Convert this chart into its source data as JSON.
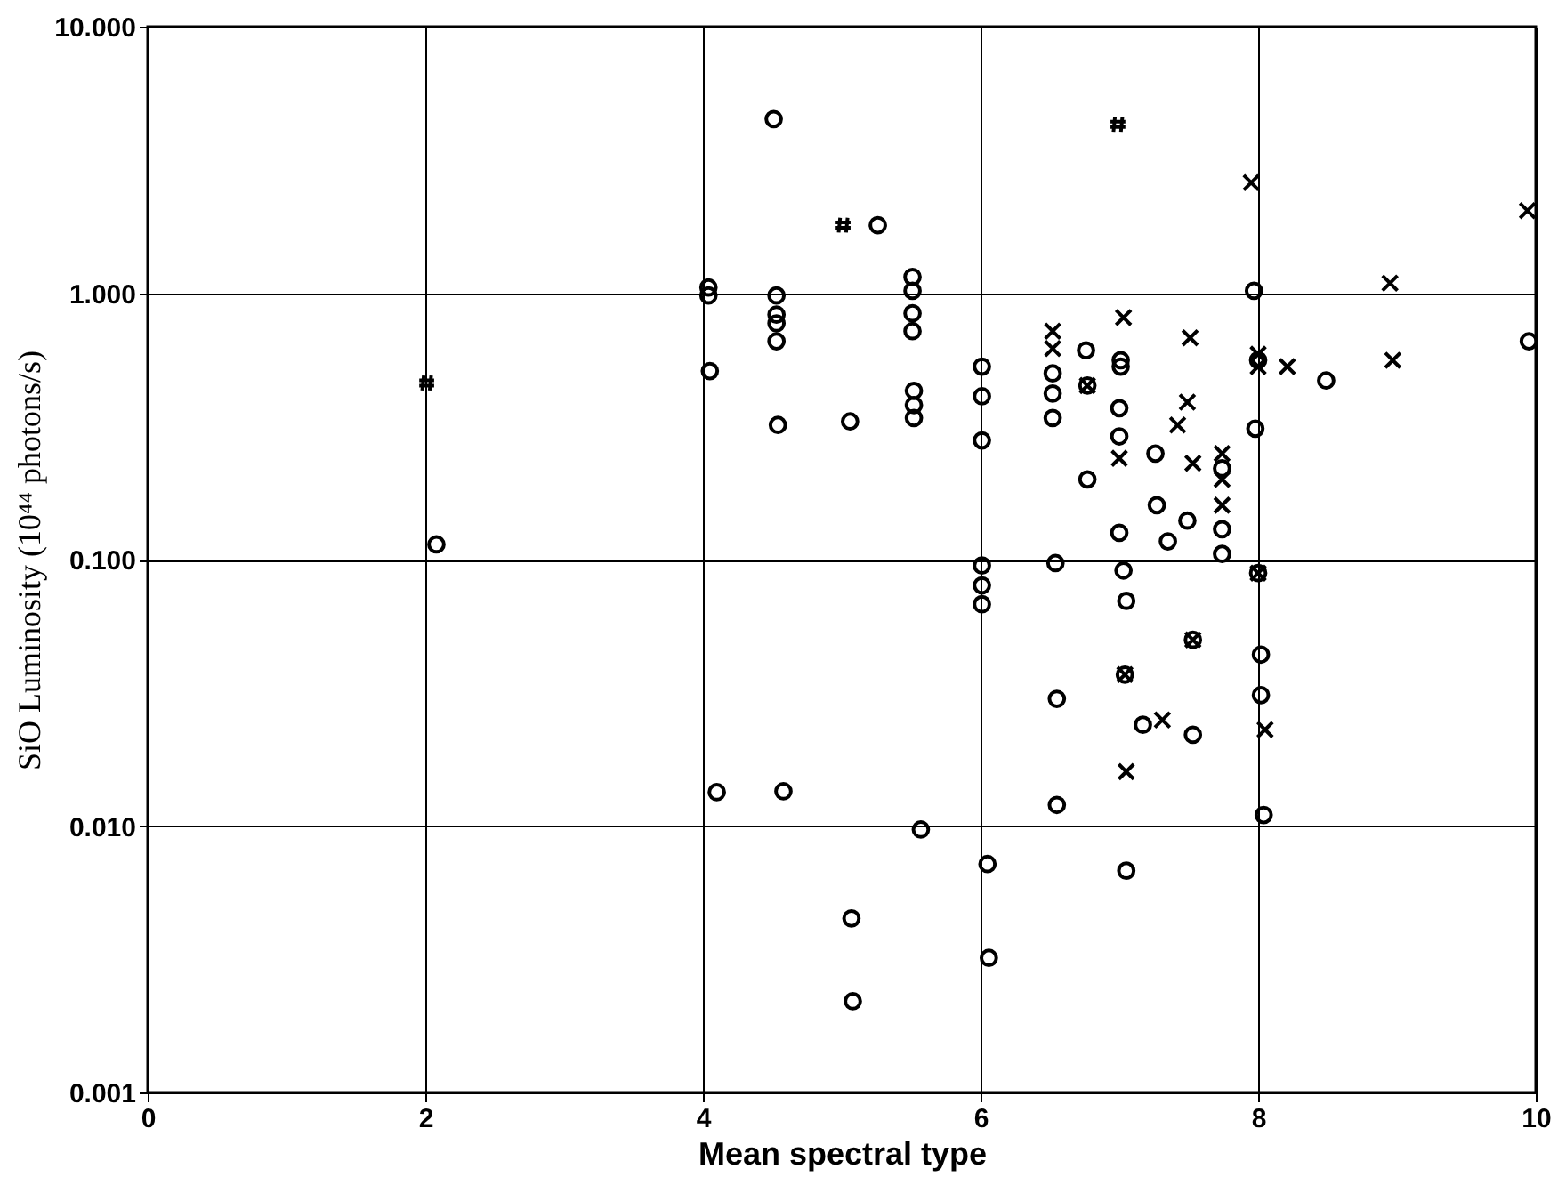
{
  "chart_data": {
    "type": "scatter",
    "xlabel": "Mean spectral type",
    "ylabel": "SiO Luminosity (10⁴⁴ photons/s)",
    "xlim": [
      0,
      10
    ],
    "xticks": [
      0,
      2,
      4,
      6,
      8,
      10
    ],
    "ylim": [
      0.001,
      10
    ],
    "yticks": [
      {
        "value": 0.001,
        "label": "0.001"
      },
      {
        "value": 0.01,
        "label": "0.010"
      },
      {
        "value": 0.1,
        "label": "0.100"
      },
      {
        "value": 1,
        "label": "1.000"
      },
      {
        "value": 10,
        "label": "10.000"
      }
    ],
    "log": "y",
    "grid": true,
    "series": [
      {
        "color": "#000000",
        "marker": "circle",
        "x": [
          4.51,
          5.26,
          4.04,
          4.04,
          4.53,
          4.53,
          4.53,
          4.53,
          4.05,
          4.54,
          5.06,
          5.51,
          5.51,
          5.51,
          5.51,
          5.52,
          5.52,
          5.52,
          2.08,
          7.97,
          9.95,
          6.52,
          6.52,
          6.52,
          6.76,
          6.77,
          7.01,
          7.01,
          7.0,
          7.0,
          7.26,
          7.74,
          7.74,
          7.74,
          6.77,
          7.27,
          7.49,
          7.0,
          7.35,
          8.0,
          8.49,
          7.98,
          6.01,
          6.01,
          6.01,
          6.01,
          6.01,
          6.01,
          6.54,
          7.03,
          8.0,
          7.05,
          7.53,
          8.02,
          8.02,
          7.04,
          6.55,
          7.17,
          7.53,
          6.55,
          8.04,
          5.57,
          6.05,
          7.05,
          6.06,
          4.1,
          4.58,
          5.07,
          5.08
        ],
        "values": [
          4.5,
          1.8,
          1.05,
          0.98,
          0.98,
          0.83,
          0.77,
          0.66,
          0.51,
          0.32,
          0.33,
          1.15,
          1.02,
          0.84,
          0.72,
          0.43,
          0.38,
          0.34,
          0.114,
          1.02,
          0.66,
          0.5,
          0.42,
          0.34,
          0.61,
          0.45,
          0.56,
          0.53,
          0.37,
          0.29,
          0.25,
          0.22,
          0.13,
          0.105,
          0.2,
          0.16,
          0.14,
          0.126,
          0.117,
          0.56,
          0.47,
          0.31,
          0.53,
          0.41,
          0.28,
          0.095,
          0.08,
          0.068,
          0.097,
          0.091,
          0.089,
          0.07,
          0.05,
          0.044,
          0.031,
          0.037,
          0.03,
          0.024,
          0.022,
          0.012,
          0.011,
          0.0097,
          0.0072,
          0.0068,
          0.0032,
          0.0134,
          0.0135,
          0.0045,
          0.0022
        ]
      },
      {
        "color": "#000000",
        "marker": "cross",
        "x": [
          7.95,
          9.94,
          8.95,
          8.97,
          7.03,
          7.51,
          6.52,
          6.52,
          6.77,
          7.0,
          7.53,
          7.49,
          7.42,
          7.74,
          7.74,
          7.74,
          8.0,
          8.0,
          8.21,
          8.0,
          7.53,
          8.05,
          7.04,
          7.31,
          7.05
        ],
        "values": [
          2.6,
          2.04,
          1.09,
          0.56,
          0.81,
          0.68,
          0.72,
          0.62,
          0.45,
          0.24,
          0.23,
          0.39,
          0.32,
          0.25,
          0.2,
          0.16,
          0.59,
          0.53,
          0.53,
          0.089,
          0.05,
          0.023,
          0.037,
          0.025,
          0.016
        ]
      },
      {
        "color": "#000000",
        "x": [
          6.99,
          5.01,
          2.01
        ],
        "values": [
          4.3,
          1.8,
          0.46
        ]
      }
    ]
  }
}
